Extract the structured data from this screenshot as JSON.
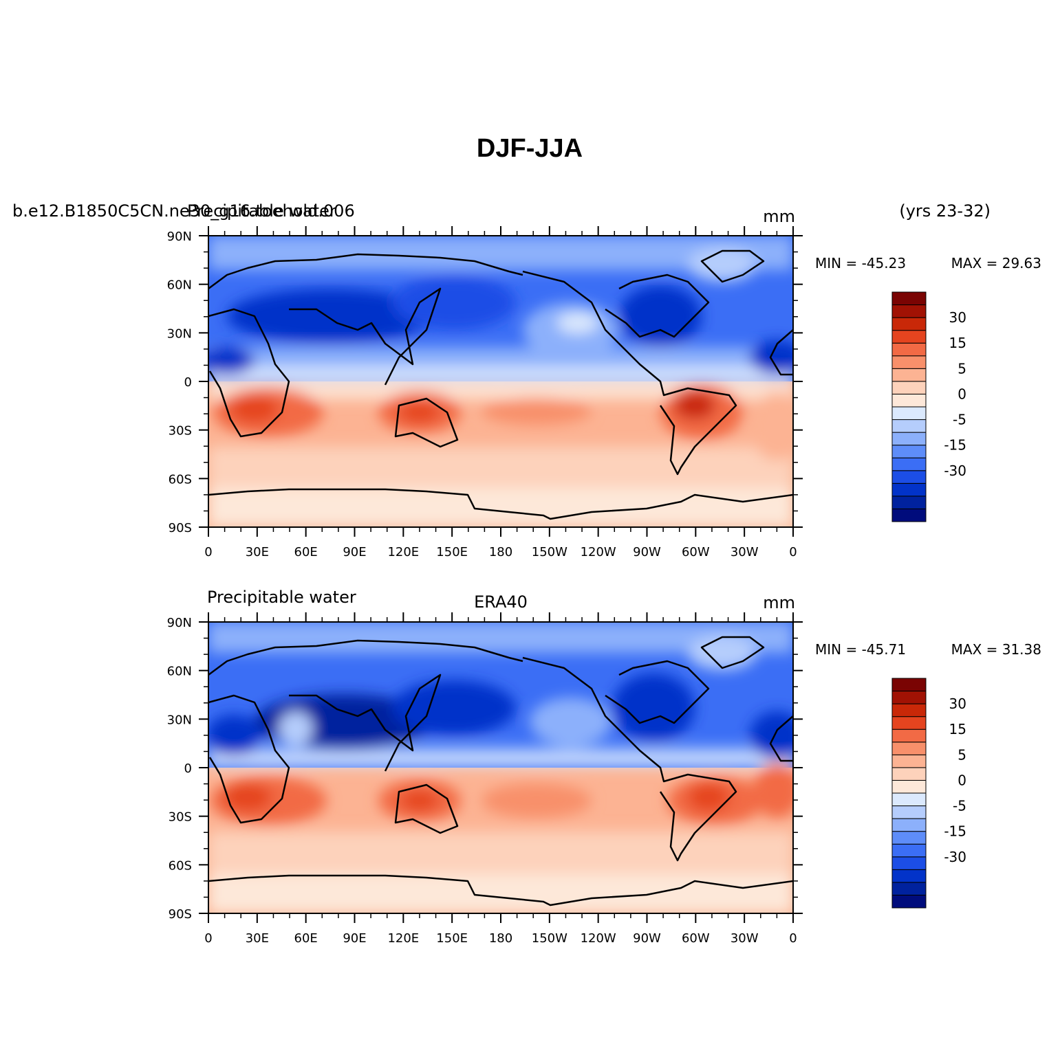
{
  "title": "DJF-JJA",
  "colorbar": {
    "colors": [
      "#000c7c",
      "#00229e",
      "#0233c9",
      "#1c4ee6",
      "#3b6ef5",
      "#5e8df9",
      "#8cb0fb",
      "#b5cdfc",
      "#dbe9fd",
      "#fde8d9",
      "#fdd2bb",
      "#fcb393",
      "#f8906b",
      "#f26a45",
      "#e5441f",
      "#c92808",
      "#a11204",
      "#7a0403"
    ],
    "labels": [
      "30",
      "15",
      "5",
      "0",
      "-5",
      "-15",
      "-30"
    ]
  },
  "panels": [
    {
      "left_title": "b.e12.B1850C5CN.ne30_g16.toehold.006",
      "left_title_overlay": "Precipitable water",
      "center_title": "",
      "units": "mm",
      "years": "(yrs 23-32)",
      "min_label": "MIN = -45.23",
      "max_label": "MAX =  29.63",
      "lat_labels": [
        "90N",
        "60N",
        "30N",
        "0",
        "30S",
        "60S",
        "90S"
      ],
      "lon_labels": [
        "0",
        "30E",
        "60E",
        "90E",
        "120E",
        "150E",
        "180",
        "150W",
        "120W",
        "90W",
        "60W",
        "30W",
        "0"
      ]
    },
    {
      "left_title": "Precipitable water",
      "left_title_overlay": "",
      "center_title": "ERA40",
      "units": "mm",
      "years": "",
      "min_label": "MIN = -45.71",
      "max_label": "MAX =  31.38",
      "lat_labels": [
        "90N",
        "60N",
        "30N",
        "0",
        "30S",
        "60S",
        "90S"
      ],
      "lon_labels": [
        "0",
        "30E",
        "60E",
        "90E",
        "120E",
        "150E",
        "180",
        "150W",
        "120W",
        "90W",
        "60W",
        "30W",
        "0"
      ]
    }
  ]
}
